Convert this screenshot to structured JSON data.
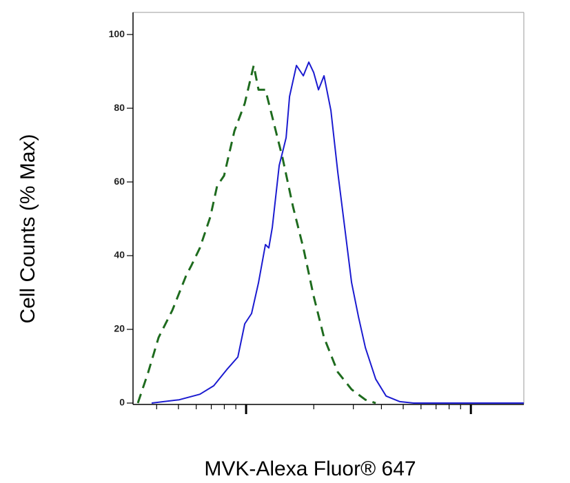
{
  "chart_data": {
    "type": "line",
    "x_label": "MVK-Alexa Fluor® 647",
    "y_label": "Cell Counts (% Max)",
    "xscale": "log",
    "xlim": [
      314,
      17200
    ],
    "xticks": [
      1000,
      10000
    ],
    "xminor_ticks": [
      400,
      500,
      600,
      700,
      800,
      900,
      2000,
      3000,
      4000,
      5000,
      6000,
      7000,
      8000,
      9000
    ],
    "ylim": [
      0,
      106
    ],
    "yticks": [
      0,
      20,
      40,
      60,
      80,
      100
    ],
    "series": [
      {
        "color": "#1e6b1e",
        "dash": true,
        "x": [
          330,
          367,
          408,
          470,
          541,
          572,
          623,
          693,
          743,
          798,
          887,
          986,
          1081,
          1136,
          1219,
          1308,
          1454,
          1617,
          1797,
          1998,
          2222,
          2559,
          2946,
          3395,
          3773
        ],
        "values": [
          0,
          8.4,
          17.8,
          25.2,
          34.6,
          37.4,
          42.1,
          50.5,
          58.9,
          61.7,
          73.8,
          81.3,
          91.6,
          85.0,
          85.0,
          77.6,
          66.4,
          53.3,
          42.1,
          29.0,
          17.8,
          8.4,
          3.7,
          0.9,
          0
        ]
      },
      {
        "color": "#1a1ad0",
        "dash": false,
        "x": [
          380,
          504,
          623,
          718,
          826,
          919,
          986,
          1058,
          1136,
          1219,
          1262,
          1308,
          1404,
          1454,
          1506,
          1561,
          1675,
          1797,
          1901,
          1998,
          2099,
          2222,
          2384,
          2559,
          2746,
          2946,
          3162,
          3395,
          3773,
          4195,
          4831,
          5564,
          17200
        ],
        "values": [
          0,
          0.9,
          2.4,
          4.7,
          9.3,
          12.5,
          21.5,
          24.3,
          32.7,
          43.0,
          42.1,
          47.7,
          64.5,
          68.2,
          72.0,
          83.2,
          91.6,
          88.8,
          92.5,
          89.7,
          85.0,
          88.8,
          79.4,
          62.6,
          47.7,
          32.7,
          23.4,
          15.0,
          6.5,
          1.9,
          0.4,
          0,
          0
        ]
      }
    ]
  }
}
